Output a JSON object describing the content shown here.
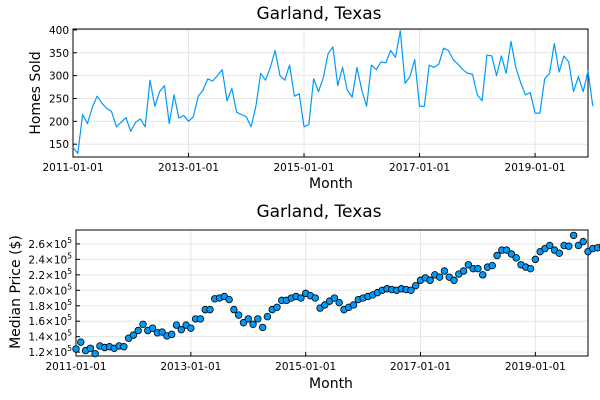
{
  "chart_data": [
    {
      "type": "line",
      "title": "Garland, Texas",
      "xlabel": "Month",
      "ylabel": "Homes Sold",
      "xlim": [
        "2011-01-01",
        "2019-12-01"
      ],
      "ylim": [
        122,
        402
      ],
      "x_ticks": [
        "2011-01-01",
        "2013-01-01",
        "2015-01-01",
        "2017-01-01",
        "2019-01-01"
      ],
      "y_ticks": [
        150,
        200,
        250,
        300,
        350,
        400
      ],
      "y_tick_labels": [
        "150",
        "200",
        "250",
        "300",
        "350",
        "400"
      ],
      "grid": true,
      "legend": false,
      "color": "#009af9",
      "x_start": "2011-01",
      "x_step": "1 month",
      "series": [
        {
          "values": [
            143,
            130,
            215,
            195,
            230,
            255,
            240,
            228,
            222,
            188,
            198,
            208,
            178,
            198,
            205,
            188,
            290,
            233,
            265,
            278,
            195,
            258,
            207,
            213,
            200,
            210,
            255,
            268,
            293,
            288,
            300,
            313,
            245,
            272,
            220,
            215,
            210,
            188,
            233,
            305,
            290,
            318,
            355,
            300,
            290,
            323,
            255,
            260,
            188,
            193,
            293,
            265,
            295,
            348,
            363,
            278,
            318,
            268,
            253,
            318,
            268,
            233,
            323,
            313,
            330,
            328,
            355,
            340,
            398,
            283,
            298,
            335,
            233,
            233,
            323,
            318,
            325,
            360,
            355,
            335,
            325,
            313,
            305,
            303,
            258,
            245,
            345,
            343,
            300,
            343,
            305,
            375,
            318,
            285,
            258,
            263,
            218,
            218,
            293,
            305,
            370,
            308,
            343,
            330,
            265,
            298,
            265,
            310,
            233
          ]
        }
      ]
    },
    {
      "type": "scatter",
      "title": "Garland, Texas",
      "xlabel": "Month",
      "ylabel": "Median Price ($)",
      "xlim": [
        "2011-01-01",
        "2019-12-01"
      ],
      "ylim": [
        115000,
        278000
      ],
      "x_ticks": [
        "2011-01-01",
        "2013-01-01",
        "2015-01-01",
        "2017-01-01",
        "2019-01-01"
      ],
      "y_ticks": [
        120000,
        140000,
        160000,
        180000,
        200000,
        220000,
        240000,
        260000
      ],
      "y_tick_mantissas": [
        "1.2",
        "1.4",
        "1.6",
        "1.8",
        "2.0",
        "2.2",
        "2.4",
        "2.6"
      ],
      "y_tick_base": "×10",
      "y_tick_exponent": "5",
      "grid": true,
      "legend": false,
      "color": "#009af9",
      "x_start": "2011-01",
      "x_step": "1 month",
      "series": [
        {
          "values": [
            124000,
            133000,
            122000,
            125000,
            118000,
            128000,
            126000,
            127000,
            125000,
            128000,
            127000,
            138000,
            142000,
            148000,
            156000,
            148000,
            151000,
            145000,
            146000,
            141000,
            143000,
            155000,
            149000,
            155000,
            151000,
            163000,
            163000,
            175000,
            175000,
            189000,
            190000,
            192000,
            188000,
            175000,
            168000,
            158000,
            163000,
            156000,
            163000,
            152000,
            166000,
            175000,
            178000,
            187000,
            187000,
            190000,
            192000,
            190000,
            196000,
            193000,
            190000,
            177000,
            181000,
            186000,
            190000,
            184000,
            175000,
            178000,
            181000,
            188000,
            190000,
            192000,
            194000,
            197000,
            200000,
            202000,
            201000,
            200000,
            202000,
            201000,
            200000,
            206000,
            213000,
            216000,
            213000,
            220000,
            217000,
            225000,
            217000,
            213000,
            221000,
            225000,
            233000,
            228000,
            228000,
            220000,
            230000,
            232000,
            245000,
            252000,
            252000,
            247000,
            242000,
            233000,
            230000,
            228000,
            240000,
            250000,
            254000,
            258000,
            252000,
            248000,
            258000,
            257000,
            271000,
            258000,
            263000,
            250000,
            254000,
            255000,
            257000,
            267000
          ]
        }
      ]
    }
  ]
}
